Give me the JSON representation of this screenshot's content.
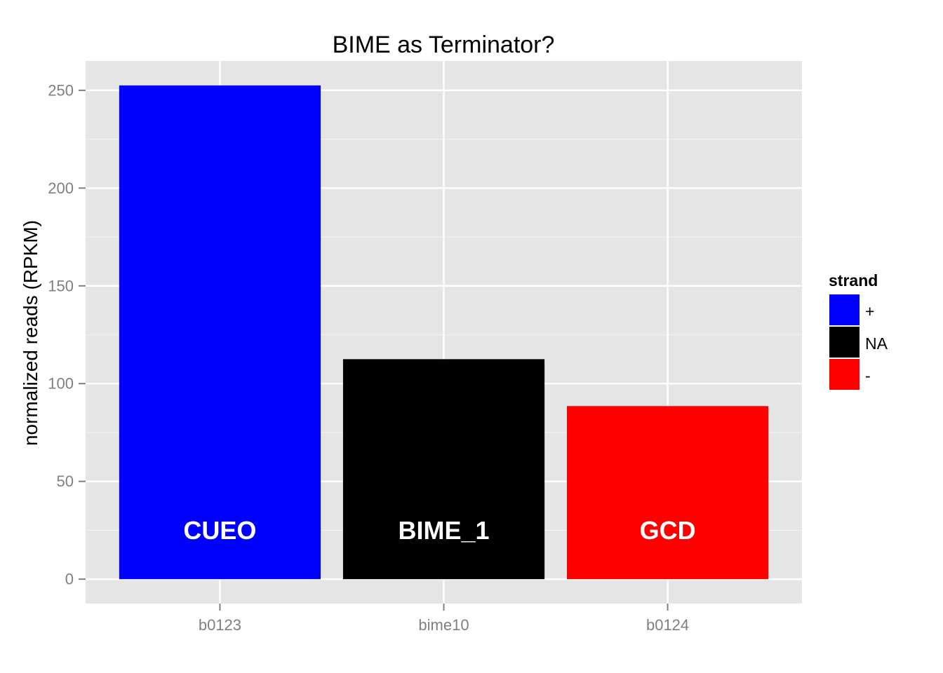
{
  "chart_data": {
    "type": "bar",
    "title": "BIME as Terminator?",
    "xlabel": "",
    "ylabel": "normalized reads (RPKM)",
    "categories": [
      "b0123",
      "bime10",
      "b0124"
    ],
    "values": [
      252.5,
      112.5,
      88.5
    ],
    "bar_labels": [
      "CUEO",
      "BIME_1",
      "GCD"
    ],
    "bar_strand": [
      "+",
      "NA",
      "-"
    ],
    "ylim": [
      -12.5,
      265
    ],
    "yticks": [
      0,
      50,
      100,
      150,
      200,
      250
    ],
    "grid": true,
    "legend": {
      "title": "strand",
      "position": "right",
      "entries": [
        {
          "label": "+",
          "color": "#0000FF"
        },
        {
          "label": "NA",
          "color": "#000000"
        },
        {
          "label": "-",
          "color": "#FF0000"
        }
      ]
    },
    "colors": {
      "panel_bg": "#E5E5E5",
      "grid_major": "#FFFFFF",
      "grid_minor": "#F2F2F2",
      "tick_text": "#7F7F7F",
      "bar_label_text": "#FFFFFF"
    }
  }
}
